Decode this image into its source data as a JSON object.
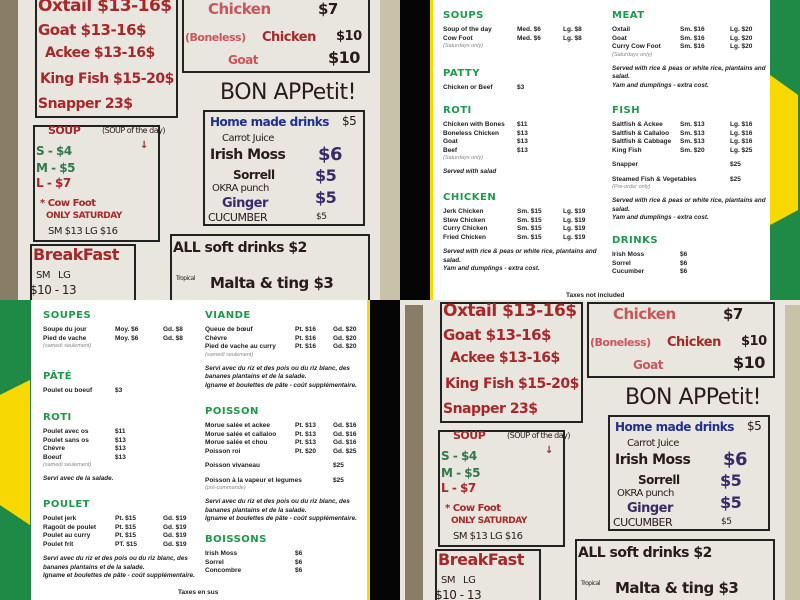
{
  "whiteboard": {
    "left_box": [
      "Oxtail $13-16$",
      "Goat $13-16$",
      "Ackee $13-16$",
      "King Fish $15-20$",
      "Snapper 23$"
    ],
    "roti_box": {
      "chicken": "Chicken",
      "chicken_price": "$7",
      "boneless": "(Boneless)",
      "boneless_chicken": "Chicken",
      "boneless_price": "$10",
      "goat": "Goat",
      "goat_price": "$10"
    },
    "greeting": "BON APPetit!",
    "soup": {
      "title": "SOUP",
      "subtitle": "(SOUP of the day)",
      "arrow": "↓",
      "sizes": [
        "S - $4",
        "M - $5",
        "L - $7"
      ],
      "cow_foot": "* Cow Foot",
      "only": "ONLY SATURDAY",
      "cow_foot_prices": "SM $13  LG $16"
    },
    "drinks": {
      "title": "Home made drinks",
      "title_price": "$5",
      "items": [
        {
          "name": "Carrot Juice",
          "price": ""
        },
        {
          "name": "Irish Moss",
          "price": "$6"
        },
        {
          "name": "Sorrell",
          "price": "$5"
        },
        {
          "name": "OKRA punch",
          "price": ""
        },
        {
          "name": "Ginger",
          "price": "$5"
        },
        {
          "name": "CUCUMBER",
          "price": "$5"
        }
      ]
    },
    "soft_drinks": "ALL soft drinks $2",
    "tropical": "Tropical",
    "malta": "Malta & ting $3",
    "breakfast": {
      "title": "BreakFast",
      "sizes": "SM   LG",
      "prices": "$10 - 13"
    }
  },
  "menu_en": {
    "footer": "Taxes not included",
    "left": [
      {
        "title": "SOUPS",
        "items": [
          {
            "name": "Soup of the day",
            "a": "Med. $6",
            "b": "Lg. $8"
          },
          {
            "name": "Cow Foot",
            "a": "Med. $6",
            "b": "Lg. $8",
            "note": "(Saturdays only)"
          }
        ],
        "extra": []
      },
      {
        "title": "PATTY",
        "items": [
          {
            "name": "Chicken or Beef",
            "a": "$3",
            "b": ""
          }
        ],
        "extra": []
      },
      {
        "title": "ROTI",
        "items": [
          {
            "name": "Chicken with Bones",
            "a": "$11",
            "b": ""
          },
          {
            "name": "Boneless Chicken",
            "a": "$13",
            "b": ""
          },
          {
            "name": "Goat",
            "a": "$13",
            "b": ""
          },
          {
            "name": "Beef",
            "a": "$13",
            "b": "",
            "note": "(Saturdays only)"
          }
        ],
        "extra": [
          "Served with salad"
        ]
      },
      {
        "title": "CHICKEN",
        "items": [
          {
            "name": "Jerk Chicken",
            "a": "Sm. $15",
            "b": "Lg. $19"
          },
          {
            "name": "Stew Chicken",
            "a": "Sm. $15",
            "b": "Lg. $19"
          },
          {
            "name": "Curry Chicken",
            "a": "Sm. $15",
            "b": "Lg. $19"
          },
          {
            "name": "Fried Chicken",
            "a": "Sm. $15",
            "b": "Lg. $19"
          }
        ],
        "extra": [
          "Served with rice & peas or white rice, plantains and salad.",
          "Yam and dumplings - extra cost."
        ]
      }
    ],
    "right": [
      {
        "title": "MEAT",
        "items": [
          {
            "name": "Oxtail",
            "a": "Sm. $16",
            "b": "Lg. $20"
          },
          {
            "name": "Goat",
            "a": "Sm. $16",
            "b": "Lg. $20"
          },
          {
            "name": "Curry Cow Foot",
            "a": "Sm. $16",
            "b": "Lg. $20",
            "note": "(Saturdays only)"
          }
        ],
        "extra": [
          "Served with rice & peas or white rice, plantains and salad.",
          "Yam and dumplings - extra cost."
        ]
      },
      {
        "title": "FISH",
        "items": [
          {
            "name": "Saltfish & Ackee",
            "a": "Sm. $13",
            "b": "Lg. $16"
          },
          {
            "name": "Saltfish & Callaloo",
            "a": "Sm. $13",
            "b": "Lg. $16"
          },
          {
            "name": "Saltfish & Cabbage",
            "a": "Sm. $13",
            "b": "Lg. $16"
          },
          {
            "name": "King Fish",
            "a": "Sm. $20",
            "b": "Lg. $25",
            "gap": true
          },
          {
            "name": "Snapper",
            "a": "",
            "b": "$25",
            "gap": true
          },
          {
            "name": "Steamed Fish & Vegetables",
            "a": "",
            "b": "$25",
            "note": "(Pre-order only)"
          }
        ],
        "extra": [
          "Served with rice & peas or white rice, plantains and salad.",
          "Yam and dumplings - extra cost."
        ]
      },
      {
        "title": "DRINKS",
        "items": [
          {
            "name": "Irish Moss",
            "a": "$6",
            "b": ""
          },
          {
            "name": "Sorrel",
            "a": "$6",
            "b": ""
          },
          {
            "name": "Cucumber",
            "a": "$6",
            "b": ""
          }
        ],
        "extra": []
      }
    ]
  },
  "menu_fr": {
    "footer": "Taxes en sus",
    "left": [
      {
        "title": "SOUPES",
        "items": [
          {
            "name": "Soupe du jour",
            "a": "Moy. $6",
            "b": "Gd. $8"
          },
          {
            "name": "Pied de vache",
            "a": "Moy. $6",
            "b": "Gd. $8",
            "note": "(samedi seulement)"
          }
        ],
        "extra": []
      },
      {
        "title": "PÂTÉ",
        "items": [
          {
            "name": "Poulet ou boeuf",
            "a": "$3",
            "b": ""
          }
        ],
        "extra": []
      },
      {
        "title": "ROTI",
        "items": [
          {
            "name": "Poulet avec os",
            "a": "$11",
            "b": ""
          },
          {
            "name": "Poulet sans os",
            "a": "$13",
            "b": ""
          },
          {
            "name": "Chèvre",
            "a": "$13",
            "b": ""
          },
          {
            "name": "Boeuf",
            "a": "$13",
            "b": "",
            "note": "(samedi seulement)"
          }
        ],
        "extra": [
          "Servi avec de la salade."
        ]
      },
      {
        "title": "POULET",
        "items": [
          {
            "name": "Poulet jerk",
            "a": "Pt. $15",
            "b": "Gd. $19"
          },
          {
            "name": "Ragoût de poulet",
            "a": "Pt. $15",
            "b": "Gd. $19"
          },
          {
            "name": "Poulet au curry",
            "a": "Pt. $15",
            "b": "Gd. $19"
          },
          {
            "name": "Poulet frit",
            "a": "PT. $15",
            "b": "Gd. $19"
          }
        ],
        "extra": [
          "Servi avec du riz et des pois ou du riz blanc, des bananes plantains et de la salade.",
          "Igname et boulettes de pâte - coût supplémentaire."
        ]
      }
    ],
    "right": [
      {
        "title": "VIANDE",
        "items": [
          {
            "name": "Queue de bœuf",
            "a": "Pt. $16",
            "b": "Gd. $20"
          },
          {
            "name": "Chèvre",
            "a": "Pt. $16",
            "b": "Gd. $20"
          },
          {
            "name": "Pied de vache au curry",
            "a": "Pt. $16",
            "b": "Gd. $20",
            "note": "(samedi seulement)"
          }
        ],
        "extra": [
          "Servi avec du riz et des pois ou du riz blanc, des bananes plantains et de la salade.",
          "Igname et boulettes de pâte - coût supplémentaire."
        ]
      },
      {
        "title": "POISSON",
        "items": [
          {
            "name": "Morue salée et ackee",
            "a": "Pt. $13",
            "b": "Gd. $16"
          },
          {
            "name": "Morue salée et callaloo",
            "a": "Pt. $13",
            "b": "Gd. $16"
          },
          {
            "name": "Morue salée et chou",
            "a": "Pt. $13",
            "b": "Gd. $16"
          },
          {
            "name": "Poisson roi",
            "a": "Pt. $20",
            "b": "Gd. $25",
            "gap": true
          },
          {
            "name": "Poisson vivaneau",
            "a": "",
            "b": "$25",
            "gap": true
          },
          {
            "name": "Poisson à la vapeur et legumes",
            "a": "",
            "b": "$25",
            "note": "(pré-commande)"
          }
        ],
        "extra": [
          "Servi avec du riz et des pois ou du riz blanc, des bananes plantains et de la salade.",
          "Igname et boulettes de pâte - coût supplémentaire."
        ]
      },
      {
        "title": "BOISSONS",
        "items": [
          {
            "name": "Irish Moss",
            "a": "$6",
            "b": ""
          },
          {
            "name": "Sorrel",
            "a": "$6",
            "b": ""
          },
          {
            "name": "Concombre",
            "a": "$6",
            "b": ""
          }
        ],
        "extra": []
      }
    ]
  },
  "colors": {
    "heading_green": "#1c9a4c",
    "flag_green": "#1f8a45",
    "flag_yellow": "#f7d800"
  }
}
